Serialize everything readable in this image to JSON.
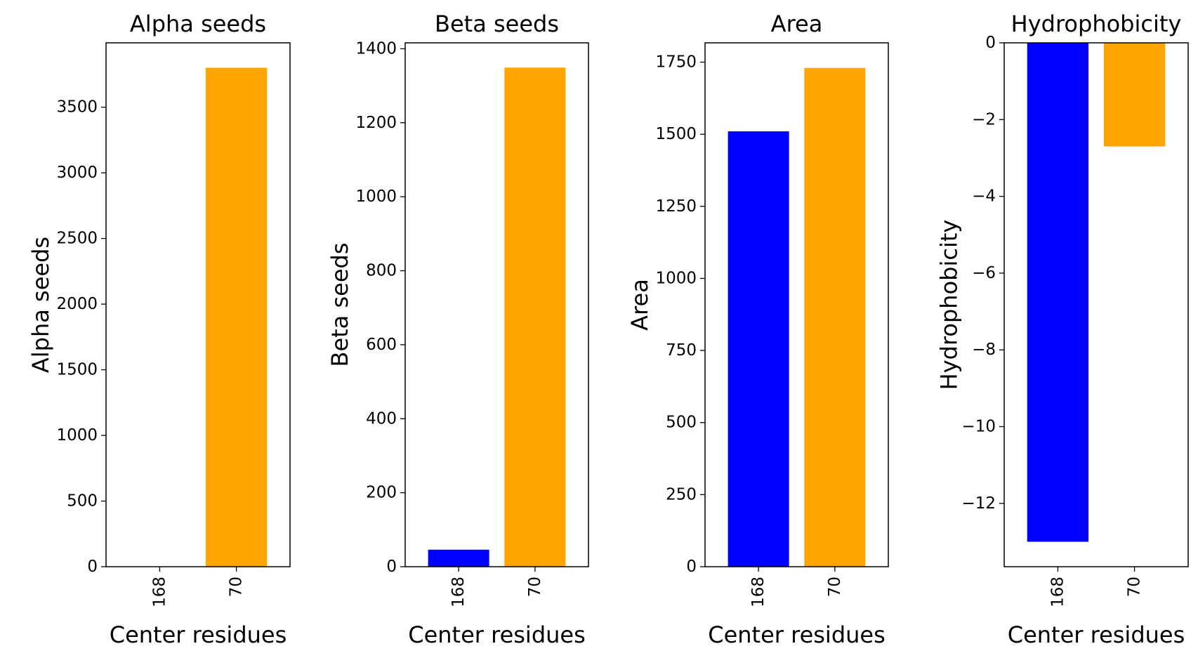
{
  "chart_data": [
    {
      "type": "bar",
      "title": "Alpha seeds",
      "xlabel": "Center residues",
      "ylabel": "Alpha seeds",
      "categories": [
        "168",
        "70"
      ],
      "values": [
        0,
        3800
      ],
      "colors": [
        "#0000ff",
        "#ffa500"
      ],
      "ylim": [
        0,
        3990
      ],
      "yticks": [
        0,
        500,
        1000,
        1500,
        2000,
        2500,
        3000,
        3500
      ]
    },
    {
      "type": "bar",
      "title": "Beta seeds",
      "xlabel": "Center residues",
      "ylabel": "Beta seeds",
      "categories": [
        "168",
        "70"
      ],
      "values": [
        46,
        1349
      ],
      "colors": [
        "#0000ff",
        "#ffa500"
      ],
      "ylim": [
        0,
        1416
      ],
      "yticks": [
        0,
        200,
        400,
        600,
        800,
        1000,
        1200,
        1400
      ]
    },
    {
      "type": "bar",
      "title": "Area",
      "xlabel": "Center residues",
      "ylabel": "Area",
      "categories": [
        "168",
        "70"
      ],
      "values": [
        1510,
        1730
      ],
      "colors": [
        "#0000ff",
        "#ffa500"
      ],
      "ylim": [
        0,
        1817
      ],
      "yticks": [
        0,
        250,
        500,
        750,
        1000,
        1250,
        1500,
        1750
      ]
    },
    {
      "type": "bar",
      "title": "Hydrophobicity",
      "xlabel": "Center residues",
      "ylabel": "Hydrophobicity",
      "categories": [
        "168",
        "70"
      ],
      "values": [
        -13.0,
        -2.7
      ],
      "colors": [
        "#0000ff",
        "#ffa500"
      ],
      "ylim": [
        -13.65,
        0
      ],
      "yticks": [
        0,
        -2,
        -4,
        -6,
        -8,
        -10,
        -12
      ]
    }
  ]
}
